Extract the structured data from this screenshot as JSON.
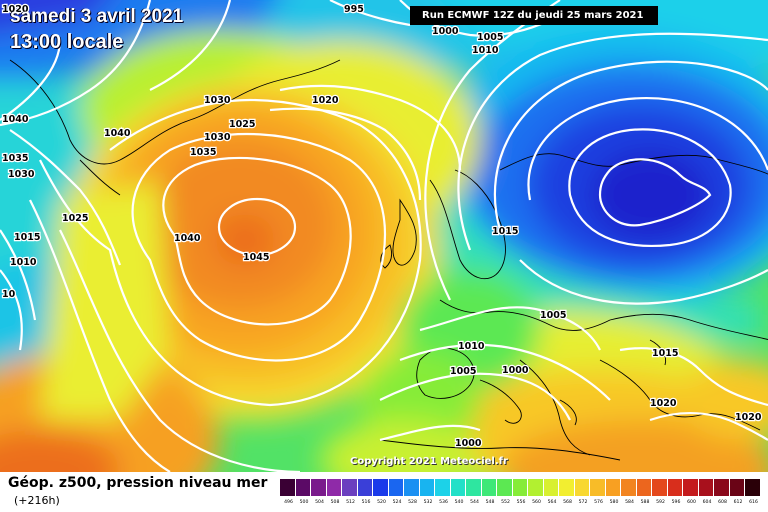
{
  "header": {
    "date": "samedi 3 avril 2021",
    "time": "13:00 locale",
    "run": "Run ECMWF 12Z du jeudi 25 mars 2021"
  },
  "copyright": "Copyright 2021 Meteociel.fr",
  "footer": {
    "title": "Géop. z500, pression niveau mer",
    "subtitle": "(+216h)"
  },
  "isobar_labels": [
    "1020",
    "995",
    "1000",
    "1005",
    "1010",
    "1040",
    "1030",
    "1020",
    "1025",
    "1040",
    "1030",
    "1035",
    "1035",
    "1030",
    "1025",
    "1040",
    "1045",
    "1015",
    "1015",
    "1010",
    "10",
    "1005",
    "1010",
    "1015",
    "1005",
    "1000",
    "1020",
    "1020",
    "1000"
  ],
  "colorscale": {
    "values": [
      "496",
      "500",
      "504",
      "508",
      "512",
      "516",
      "520",
      "524",
      "528",
      "532",
      "536",
      "540",
      "544",
      "548",
      "552",
      "556",
      "560",
      "564",
      "568",
      "572",
      "576",
      "580",
      "584",
      "588",
      "592",
      "596",
      "600",
      "604",
      "608",
      "612",
      "616"
    ],
    "colors": [
      "#3a0034",
      "#5b0a66",
      "#7a1a8c",
      "#8f2aa8",
      "#6b3fbf",
      "#3a3fd8",
      "#1a3aea",
      "#1a66f0",
      "#1a90f2",
      "#18b4f0",
      "#1cd2e8",
      "#22e0c8",
      "#2ee6a0",
      "#3ee878",
      "#5ce852",
      "#86ec38",
      "#b2f030",
      "#d8f030",
      "#f2ee30",
      "#f8d830",
      "#f8bc28",
      "#f8a022",
      "#f28420",
      "#ec661e",
      "#e4481c",
      "#d82e1c",
      "#c41a1c",
      "#a8101c",
      "#8a081a",
      "#6a0416",
      "#2a0008"
    ]
  }
}
